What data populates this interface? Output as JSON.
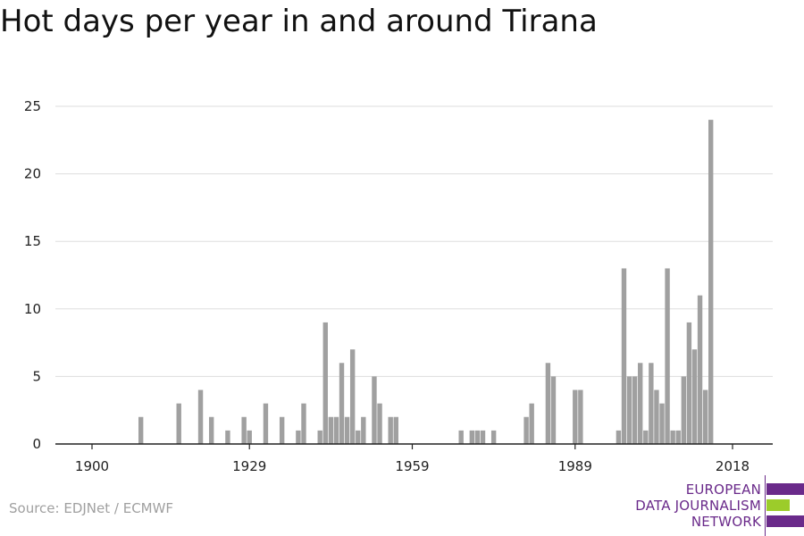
{
  "title": "Hot days per year in and around Tirana",
  "source": "Source: EDJNet / ECMWF",
  "logo": {
    "line1": "EUROPEAN",
    "line2": "DATA JOURNALISM",
    "line3": "NETWORK"
  },
  "colors": {
    "bar": "#a0a0a0",
    "grid": "#dddddd",
    "axis": "#222222",
    "brand_purple": "#6a2a8a",
    "brand_green": "#9ccc2a"
  },
  "chart_data": {
    "type": "bar",
    "title": "Hot days per year in and around Tirana",
    "xlabel": "",
    "ylabel": "",
    "xlim": [
      1900,
      2018
    ],
    "ylim": [
      0,
      25
    ],
    "yticks": [
      0,
      5,
      10,
      15,
      20,
      25
    ],
    "xticks": [
      1900,
      1929,
      1959,
      1989,
      2018
    ],
    "grid": true,
    "x": [
      1909,
      1916,
      1920,
      1922,
      1925,
      1928,
      1929,
      1932,
      1935,
      1938,
      1939,
      1942,
      1943,
      1944,
      1945,
      1946,
      1947,
      1948,
      1949,
      1950,
      1952,
      1953,
      1955,
      1956,
      1968,
      1970,
      1971,
      1972,
      1974,
      1980,
      1981,
      1984,
      1985,
      1989,
      1990,
      1997,
      1998,
      1999,
      2000,
      2001,
      2002,
      2003,
      2004,
      2005,
      2006,
      2007,
      2008,
      2009,
      2010,
      2011,
      2012,
      2013,
      2014,
      2015,
      2016,
      2017
    ],
    "values": [
      2,
      3,
      4,
      2,
      1,
      2,
      1,
      3,
      2,
      1,
      3,
      1,
      9,
      2,
      2,
      6,
      2,
      7,
      1,
      2,
      5,
      3,
      2,
      2,
      1,
      1,
      1,
      1,
      1,
      2,
      3,
      6,
      5,
      4,
      4,
      1,
      13,
      5,
      5,
      6,
      1,
      6,
      4,
      3,
      13,
      1,
      1,
      5,
      9,
      7,
      11,
      4,
      24,
      0,
      0,
      0
    ]
  }
}
